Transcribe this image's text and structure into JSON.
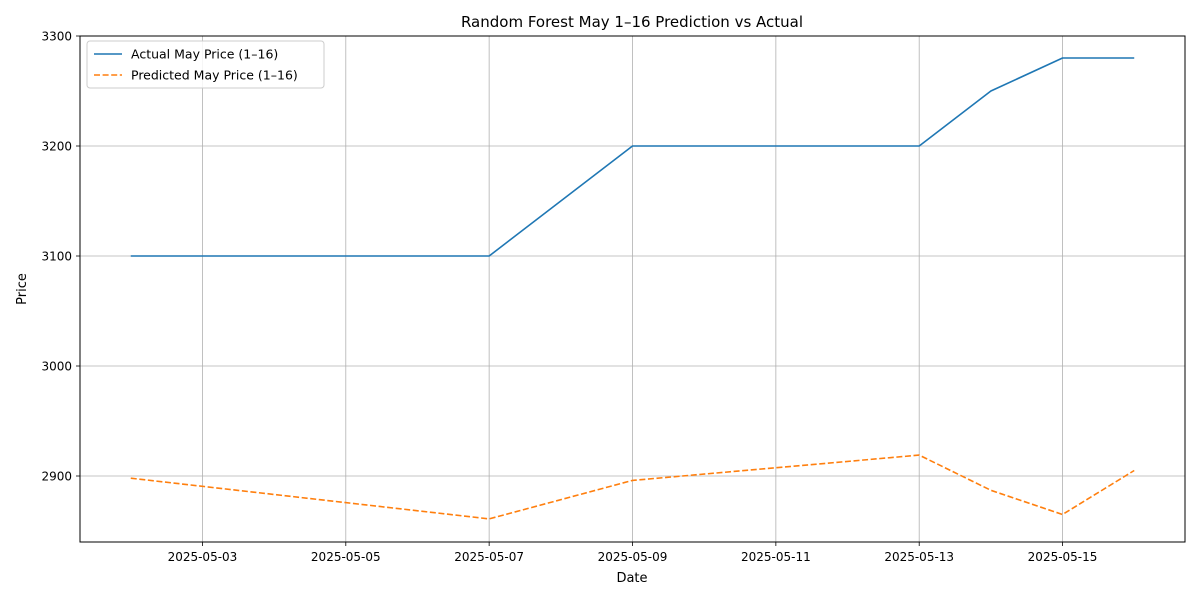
{
  "chart_data": {
    "type": "line",
    "title": "Random Forest May 1–16 Prediction vs Actual",
    "xlabel": "Date",
    "ylabel": "Price",
    "x": [
      "2025-05-02",
      "2025-05-07",
      "2025-05-09",
      "2025-05-13",
      "2025-05-14",
      "2025-05-15",
      "2025-05-16"
    ],
    "xlim": [
      "2025-05-01 07:00",
      "2025-05-16 17:00"
    ],
    "ylim": [
      2840,
      3300
    ],
    "xticks": [
      "2025-05-03",
      "2025-05-05",
      "2025-05-07",
      "2025-05-09",
      "2025-05-11",
      "2025-05-13",
      "2025-05-15"
    ],
    "yticks": [
      2900,
      3000,
      3100,
      3200,
      3300
    ],
    "grid": true,
    "legend_position": "top-left",
    "series": [
      {
        "name": "Actual May Price (1–16)",
        "style": "solid",
        "color": "#1f77b4",
        "values": [
          3100,
          3100,
          3200,
          3200,
          3250,
          3280,
          3280
        ]
      },
      {
        "name": "Predicted May Price (1–16)",
        "style": "dashed",
        "color": "#ff7f0e",
        "values": [
          2898,
          2861,
          2896,
          2919,
          2887,
          2865,
          2905
        ]
      }
    ]
  }
}
